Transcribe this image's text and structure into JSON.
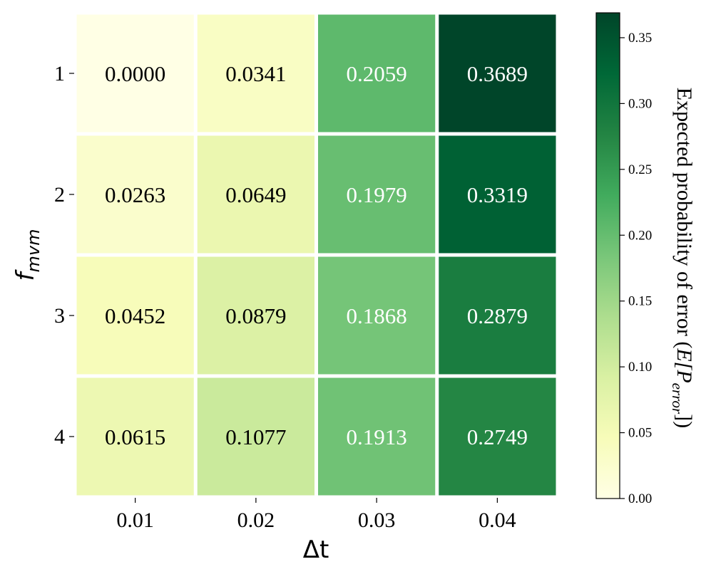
{
  "chart_data": {
    "type": "heatmap",
    "title": "",
    "xlabel": "Δt",
    "ylabel": {
      "base": "f",
      "sub": "mvm"
    },
    "x_categories": [
      "0.01",
      "0.02",
      "0.03",
      "0.04"
    ],
    "y_categories": [
      "1",
      "2",
      "3",
      "4"
    ],
    "values": [
      [
        0.0,
        0.0341,
        0.2059,
        0.3689
      ],
      [
        0.0263,
        0.0649,
        0.1979,
        0.3319
      ],
      [
        0.0452,
        0.0879,
        0.1868,
        0.2879
      ],
      [
        0.0615,
        0.1077,
        0.1913,
        0.2749
      ]
    ],
    "value_labels": [
      [
        "0.0000",
        "0.0341",
        "0.2059",
        "0.3689"
      ],
      [
        "0.0263",
        "0.0649",
        "0.1979",
        "0.3319"
      ],
      [
        "0.0452",
        "0.0879",
        "0.1868",
        "0.2879"
      ],
      [
        "0.0615",
        "0.1077",
        "0.1913",
        "0.2749"
      ]
    ],
    "colorbar": {
      "label": {
        "prefix": "Expected probability of error (",
        "italic": "E[P",
        "sub": "error",
        "suffix": "])"
      },
      "range": [
        0,
        0.3689
      ],
      "ticks": [
        0.0,
        0.05,
        0.1,
        0.15,
        0.2,
        0.25,
        0.3,
        0.35
      ],
      "tick_labels": [
        "0.00",
        "0.05",
        "0.10",
        "0.15",
        "0.20",
        "0.25",
        "0.30",
        "0.35"
      ],
      "colormap": "YlGn"
    },
    "colormap_stops": [
      "#ffffe5",
      "#f7fcb9",
      "#d9f0a3",
      "#addd8e",
      "#78c679",
      "#41ab5d",
      "#238443",
      "#006837",
      "#004529"
    ],
    "cell_gap_color": "#ffffff",
    "grid": false
  }
}
